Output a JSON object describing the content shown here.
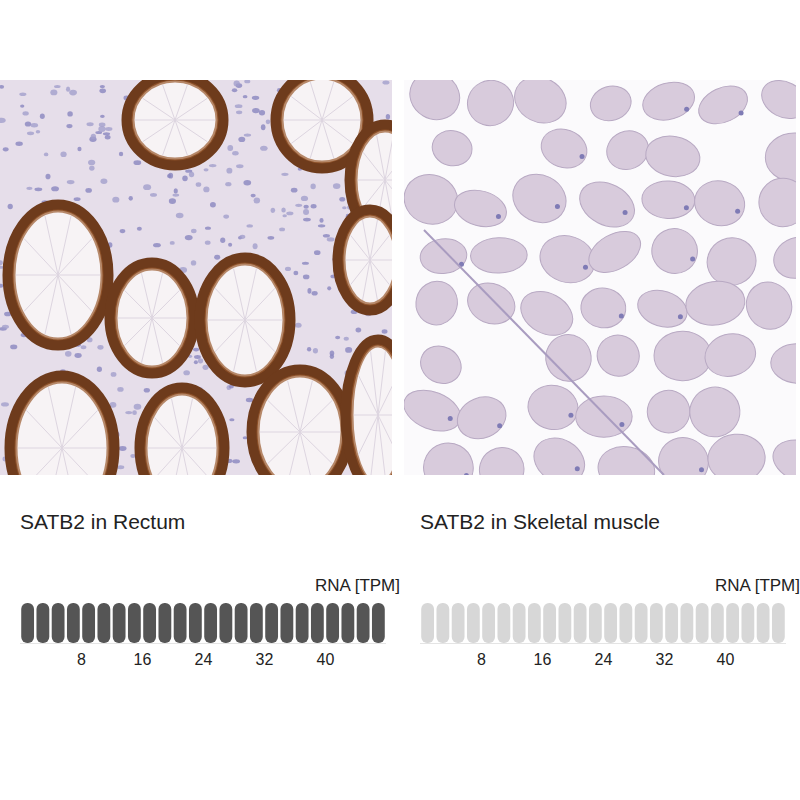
{
  "chart_data": [
    {
      "type": "bar",
      "orientation": "horizontal",
      "title": "SATB2 in Rectum",
      "xlabel": "RNA [TPM]",
      "values": [
        48
      ],
      "xlim": [
        0,
        48
      ],
      "xticks": [
        8,
        16,
        24,
        32,
        40
      ],
      "color": "#555555",
      "tick_labels": "x"
    },
    {
      "type": "bar",
      "orientation": "horizontal",
      "title": "SATB2 in Skeletal muscle",
      "xlabel": "RNA [TPM]",
      "values": [
        0
      ],
      "xlim": [
        0,
        48
      ],
      "xticks": [
        8,
        16,
        24,
        32,
        40
      ],
      "color": "#555555",
      "tick_labels": "x"
    }
  ]
}
